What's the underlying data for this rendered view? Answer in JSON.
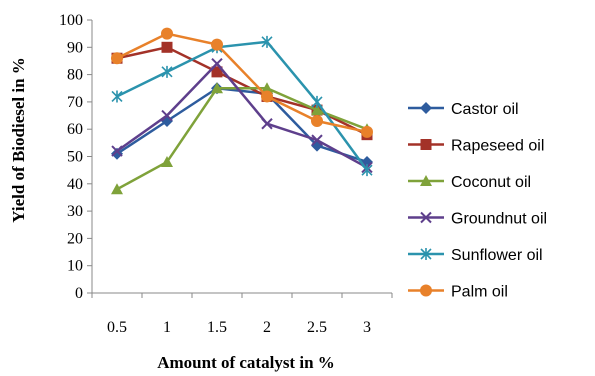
{
  "chart_data": {
    "type": "line",
    "title": "",
    "xlabel": "Amount of catalyst in %",
    "ylabel": "Yield of Biodiesel in %",
    "categories": [
      "0.5",
      "1",
      "1.5",
      "2",
      "2.5",
      "3"
    ],
    "ylim": [
      0,
      100
    ],
    "yticks": [
      0,
      10,
      20,
      30,
      40,
      50,
      60,
      70,
      80,
      90,
      100
    ],
    "grid": false,
    "legend_position": "right",
    "series": [
      {
        "name": "Castor oil",
        "color": "#2E5C9E",
        "marker": "diamond",
        "values": [
          51,
          63,
          75,
          73,
          54,
          48
        ]
      },
      {
        "name": "Rapeseed oil",
        "color": "#A33228",
        "marker": "square",
        "values": [
          86,
          90,
          81,
          72,
          67,
          58
        ]
      },
      {
        "name": "Coconut oil",
        "color": "#7FA23A",
        "marker": "triangle",
        "values": [
          38,
          48,
          75,
          75,
          67,
          60
        ]
      },
      {
        "name": "Groundnut oil",
        "color": "#5E3F8C",
        "marker": "x",
        "values": [
          52,
          65,
          84,
          62,
          56,
          46
        ]
      },
      {
        "name": "Sunflower oil",
        "color": "#2B93AD",
        "marker": "star",
        "values": [
          72,
          81,
          90,
          92,
          70,
          45
        ]
      },
      {
        "name": "Palm oil",
        "color": "#E8812A",
        "marker": "circle",
        "values": [
          86,
          95,
          91,
          72,
          63,
          59
        ]
      }
    ]
  }
}
